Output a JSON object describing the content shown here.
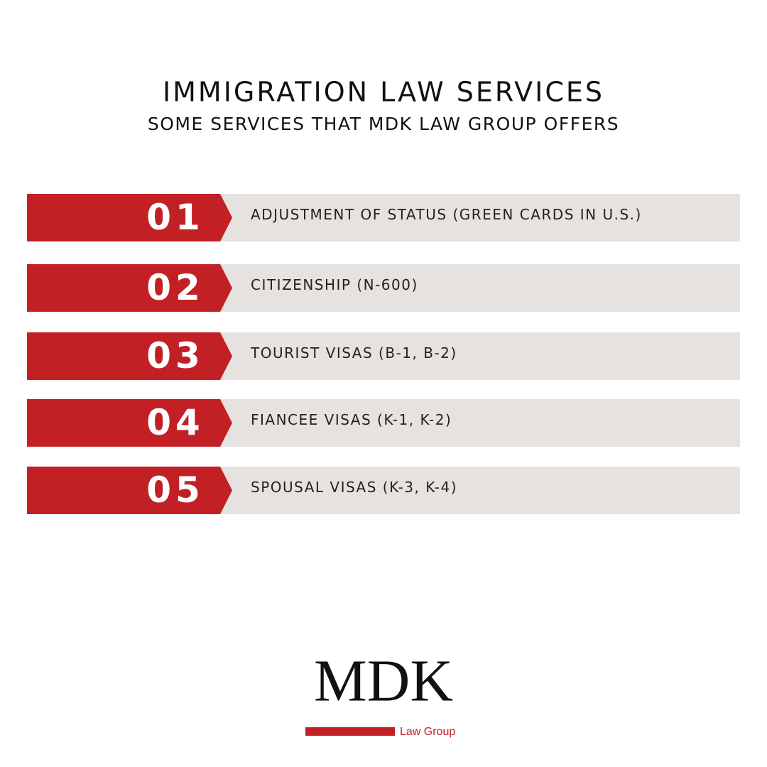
{
  "header": {
    "title": "IMMIGRATION LAW SERVICES",
    "subtitle": "SOME SERVICES THAT MDK LAW GROUP OFFERS"
  },
  "items": [
    {
      "number": "01",
      "label": "ADJUSTMENT OF STATUS (GREEN CARDS IN U.S.)"
    },
    {
      "number": "02",
      "label": "CITIZENSHIP (N-600)"
    },
    {
      "number": "03",
      "label": "TOURIST VISAS (B-1, B-2)"
    },
    {
      "number": "04",
      "label": "FIANCEE VISAS (K-1, K-2)"
    },
    {
      "number": "05",
      "label": "SPOUSAL VISAS (K-3, K-4)"
    }
  ],
  "logo": {
    "name": "MDK",
    "tagline": "Law Group"
  }
}
